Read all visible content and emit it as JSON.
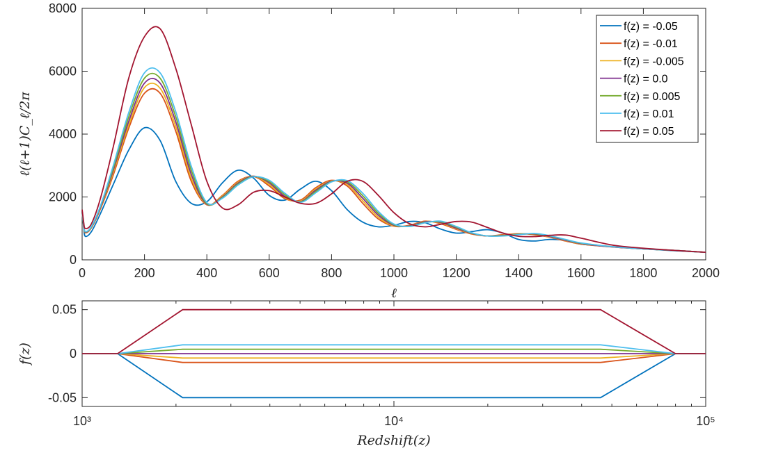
{
  "chart_data": [
    {
      "type": "line",
      "title": "",
      "xlabel": "ℓ",
      "ylabel": "ℓ(ℓ+1)C_ℓ/2π",
      "xlim": [
        0,
        2000
      ],
      "ylim": [
        0,
        8000
      ],
      "xticks": [
        0,
        200,
        400,
        600,
        800,
        1000,
        1200,
        1400,
        1600,
        1800,
        2000
      ],
      "yticks": [
        0,
        2000,
        4000,
        6000,
        8000
      ],
      "legend_position": "top-right",
      "ell": [
        0,
        5,
        10,
        30,
        60,
        100,
        150,
        200,
        250,
        300,
        350,
        400,
        450,
        500,
        550,
        600,
        650,
        700,
        750,
        800,
        850,
        900,
        950,
        1000,
        1050,
        1100,
        1150,
        1200,
        1250,
        1300,
        1350,
        1400,
        1450,
        1500,
        1550,
        1600,
        1700,
        1800,
        1900,
        2000
      ],
      "series": [
        {
          "name": "f(z) = -0.05",
          "color": "#0072BD",
          "values": [
            1500,
            1050,
            750,
            900,
            1500,
            2400,
            3500,
            4200,
            3800,
            2500,
            1800,
            1850,
            2450,
            2850,
            2600,
            2050,
            1900,
            2250,
            2500,
            2200,
            1600,
            1200,
            1050,
            1100,
            1220,
            1180,
            980,
            850,
            900,
            960,
            850,
            650,
            600,
            650,
            620,
            500,
            420,
            350,
            290,
            240
          ]
        },
        {
          "name": "f(z) = -0.01",
          "color": "#D95319",
          "values": [
            1520,
            1100,
            860,
            1020,
            1650,
            2700,
            4200,
            5300,
            5300,
            4100,
            2500,
            1750,
            2050,
            2500,
            2650,
            2350,
            1950,
            1900,
            2300,
            2530,
            2350,
            1800,
            1300,
            1070,
            1100,
            1230,
            1150,
            970,
            820,
            760,
            800,
            830,
            800,
            720,
            600,
            500,
            410,
            350,
            300,
            240
          ]
        },
        {
          "name": "f(z) = -0.005",
          "color": "#EDB120",
          "values": [
            1530,
            1110,
            870,
            1030,
            1680,
            2780,
            4300,
            5480,
            5460,
            4250,
            2600,
            1760,
            2030,
            2470,
            2660,
            2400,
            1980,
            1870,
            2260,
            2510,
            2400,
            1880,
            1360,
            1080,
            1090,
            1220,
            1170,
            990,
            830,
            760,
            790,
            830,
            810,
            730,
            610,
            510,
            410,
            350,
            300,
            240
          ]
        },
        {
          "name": "f(z) =  0.0",
          "color": "#7E2F8E",
          "values": [
            1540,
            1120,
            880,
            1040,
            1700,
            2850,
            4420,
            5620,
            5620,
            4400,
            2720,
            1770,
            2000,
            2440,
            2660,
            2450,
            2020,
            1850,
            2220,
            2500,
            2440,
            1960,
            1420,
            1100,
            1080,
            1210,
            1190,
            1010,
            840,
            760,
            780,
            820,
            820,
            740,
            620,
            520,
            410,
            350,
            300,
            240
          ]
        },
        {
          "name": "f(z) =  0.005",
          "color": "#77AC30",
          "values": [
            1550,
            1130,
            890,
            1050,
            1730,
            2920,
            4560,
            5780,
            5780,
            4560,
            2850,
            1790,
            1980,
            2410,
            2650,
            2490,
            2070,
            1840,
            2180,
            2490,
            2480,
            2040,
            1480,
            1120,
            1070,
            1190,
            1210,
            1040,
            850,
            760,
            770,
            810,
            830,
            760,
            640,
            530,
            420,
            350,
            300,
            240
          ]
        },
        {
          "name": "f(z) =  0.01",
          "color": "#4DBEEE",
          "values": [
            1560,
            1140,
            900,
            1060,
            1750,
            3000,
            4700,
            5950,
            5950,
            4720,
            2980,
            1820,
            1960,
            2380,
            2640,
            2530,
            2120,
            1830,
            2140,
            2480,
            2520,
            2120,
            1540,
            1140,
            1060,
            1180,
            1230,
            1060,
            860,
            760,
            760,
            800,
            840,
            770,
            650,
            540,
            420,
            350,
            300,
            240
          ]
        },
        {
          "name": "f(z) =  0.05",
          "color": "#A2142F",
          "values": [
            1600,
            1200,
            1000,
            1150,
            2000,
            3600,
            5800,
            7100,
            7350,
            6100,
            4300,
            2500,
            1650,
            1750,
            2150,
            2200,
            2000,
            1800,
            1800,
            2100,
            2500,
            2500,
            2050,
            1500,
            1150,
            1050,
            1130,
            1220,
            1200,
            1030,
            850,
            750,
            740,
            780,
            790,
            690,
            470,
            370,
            300,
            240
          ]
        }
      ]
    },
    {
      "type": "line",
      "title": "",
      "xlabel": "Redshift(z)",
      "ylabel": "f(z)",
      "xscale": "log",
      "xlim": [
        1000,
        100000
      ],
      "ylim": [
        -0.06,
        0.06
      ],
      "xtick_labels": [
        "10³",
        "10⁴",
        "10⁵"
      ],
      "ytick_labels": [
        "0.05",
        "0",
        "-0.05"
      ],
      "yticks": [
        0.05,
        0,
        -0.05
      ],
      "x": [
        1000,
        1300,
        2100,
        46000,
        80000,
        100000
      ],
      "series": [
        {
          "name": "f(z) = -0.05",
          "color": "#0072BD",
          "values": [
            0,
            0,
            -0.05,
            -0.05,
            0,
            0
          ]
        },
        {
          "name": "f(z) = -0.01",
          "color": "#D95319",
          "values": [
            0,
            0,
            -0.01,
            -0.01,
            0,
            0
          ]
        },
        {
          "name": "f(z) = -0.005",
          "color": "#EDB120",
          "values": [
            0,
            0,
            -0.005,
            -0.005,
            0,
            0
          ]
        },
        {
          "name": "f(z) =  0.0",
          "color": "#7E2F8E",
          "values": [
            0,
            0,
            0,
            0,
            0,
            0
          ]
        },
        {
          "name": "f(z) =  0.005",
          "color": "#77AC30",
          "values": [
            0,
            0,
            0.005,
            0.005,
            0,
            0
          ]
        },
        {
          "name": "f(z) =  0.01",
          "color": "#4DBEEE",
          "values": [
            0,
            0,
            0.01,
            0.01,
            0,
            0
          ]
        },
        {
          "name": "f(z) =  0.05",
          "color": "#A2142F",
          "values": [
            0,
            0,
            0.05,
            0.05,
            0,
            0
          ]
        }
      ]
    }
  ]
}
